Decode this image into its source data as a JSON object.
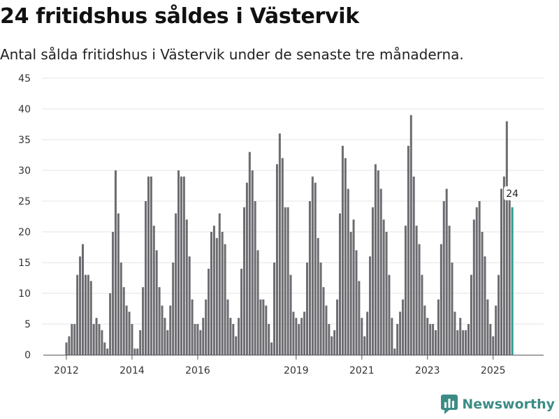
{
  "chart_data": {
    "type": "bar",
    "title": "24 fritidshus såldes i Västervik",
    "subtitle": "Antal sålda fritidshus i Västervik under de senaste tre månaderna.",
    "ylim": [
      0,
      45
    ],
    "yticks": [
      "0",
      "5",
      "10",
      "15",
      "20",
      "25",
      "30",
      "35",
      "40",
      "45"
    ],
    "grid": true,
    "x_start": "2012-01",
    "xticks": [
      {
        "date": "2012-01",
        "label": "2012"
      },
      {
        "date": "2014-01",
        "label": "2014"
      },
      {
        "date": "2016-01",
        "label": "2016"
      },
      {
        "date": "2019-01",
        "label": "2019"
      },
      {
        "date": "2021-01",
        "label": "2021"
      },
      {
        "date": "2023-01",
        "label": "2023"
      },
      {
        "date": "2025-01",
        "label": "2025"
      }
    ],
    "values": [
      2,
      3,
      5,
      5,
      13,
      16,
      18,
      13,
      13,
      12,
      5,
      6,
      5,
      4,
      2,
      1,
      10,
      20,
      30,
      23,
      15,
      11,
      8,
      7,
      5,
      1,
      1,
      4,
      11,
      25,
      29,
      29,
      21,
      17,
      11,
      8,
      6,
      4,
      8,
      15,
      23,
      30,
      29,
      29,
      22,
      16,
      9,
      5,
      5,
      4,
      6,
      9,
      14,
      20,
      21,
      19,
      23,
      20,
      18,
      9,
      6,
      5,
      3,
      6,
      14,
      24,
      28,
      33,
      30,
      25,
      17,
      9,
      9,
      8,
      5,
      2,
      15,
      31,
      36,
      32,
      24,
      24,
      13,
      7,
      6,
      5,
      6,
      7,
      15,
      25,
      29,
      28,
      19,
      15,
      11,
      8,
      5,
      3,
      4,
      9,
      23,
      34,
      32,
      27,
      20,
      22,
      17,
      12,
      6,
      3,
      7,
      16,
      24,
      31,
      30,
      27,
      22,
      20,
      13,
      6,
      1,
      5,
      7,
      9,
      21,
      34,
      39,
      29,
      21,
      18,
      13,
      8,
      6,
      5,
      5,
      4,
      9,
      18,
      25,
      27,
      21,
      15,
      7,
      4,
      6,
      4,
      4,
      5,
      13,
      22,
      24,
      25,
      20,
      16,
      9,
      5,
      3,
      8,
      13,
      27,
      29,
      38,
      26,
      24
    ],
    "highlight_value": "24",
    "colors": {
      "bar": "#6b6b70",
      "highlight": "#2a9d8f",
      "grid": "#e3e3e3",
      "axis": "#555555"
    }
  },
  "brand": {
    "name": "Newsworthy",
    "icon": "newsworthy-logo-icon",
    "color": "#3c8c86"
  }
}
